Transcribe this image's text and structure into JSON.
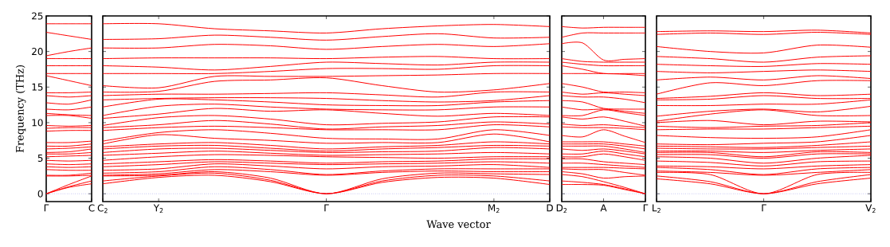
{
  "chart_data": [
    {
      "type": "line",
      "color": "#ff0000",
      "ylabel": "Frequency (THz)",
      "ylim": [
        -1.1,
        25
      ],
      "yticks": [
        0,
        5,
        10,
        15,
        20,
        25
      ],
      "categories": [
        "Γ",
        null,
        "C"
      ],
      "ref_lines": [
        {
          "axis": "y",
          "value": 0,
          "color": "#6666dd",
          "line_style": "dotted"
        }
      ],
      "series": [
        {
          "values": [
            0,
            0.9,
            1.4
          ]
        },
        {
          "values": [
            0,
            1.0,
            1.8
          ]
        },
        {
          "values": [
            0,
            1.3,
            2.5
          ]
        },
        {
          "values": [
            2.5,
            2.5,
            2.6
          ]
        },
        {
          "values": [
            2.6,
            2.6,
            2.9
          ]
        },
        {
          "values": [
            3.4,
            3.3,
            3.3
          ]
        },
        {
          "values": [
            3.8,
            3.7,
            3.8
          ]
        },
        {
          "values": [
            4.2,
            4.1,
            4.2
          ]
        },
        {
          "values": [
            4.7,
            4.6,
            4.7
          ]
        },
        {
          "values": [
            5.2,
            5.3,
            5.4
          ]
        },
        {
          "values": [
            5.6,
            5.6,
            5.8
          ]
        },
        {
          "values": [
            5.8,
            5.9,
            6.3
          ]
        },
        {
          "values": [
            6.3,
            6.4,
            6.6
          ]
        },
        {
          "values": [
            6.7,
            6.7,
            7.0
          ]
        },
        {
          "values": [
            7.2,
            7.2,
            7.4
          ]
        },
        {
          "values": [
            8.8,
            8.9,
            8.9
          ]
        },
        {
          "values": [
            9.2,
            9.3,
            9.3
          ]
        },
        {
          "values": [
            9.6,
            9.5,
            9.6
          ]
        },
        {
          "values": [
            11.0,
            11.0,
            10.6
          ]
        },
        {
          "values": [
            11.3,
            11.1,
            11.0
          ]
        },
        {
          "values": [
            11.9,
            11.8,
            12.2
          ]
        },
        {
          "values": [
            12.8,
            12.6,
            13.2
          ]
        },
        {
          "values": [
            13.8,
            13.6,
            13.8
          ]
        },
        {
          "values": [
            14.2,
            14.2,
            14.3
          ]
        },
        {
          "values": [
            16.6,
            15.9,
            15.2
          ]
        },
        {
          "values": [
            16.9,
            16.9,
            16.9
          ]
        },
        {
          "values": [
            18.0,
            18.0,
            18.0
          ]
        },
        {
          "values": [
            19.0,
            19.0,
            19.0
          ]
        },
        {
          "values": [
            19.4,
            20.0,
            20.5
          ]
        },
        {
          "values": [
            22.7,
            22.2,
            21.7
          ]
        },
        {
          "values": [
            23.9,
            23.9,
            23.9
          ]
        }
      ]
    },
    {
      "type": "line",
      "color": "#ff0000",
      "xlabel": "Wave vector",
      "tick_labels": "x",
      "ylim": [
        -1.1,
        25
      ],
      "yticks": [
        0,
        5,
        10,
        15,
        20,
        25
      ],
      "categories": [
        "C$_{2}$",
        "Y$_{2}$",
        null,
        null,
        "Γ",
        null,
        null,
        "M$_{2}$",
        "D"
      ],
      "ref_lines": [
        {
          "axis": "y",
          "value": 0,
          "color": "#6666dd",
          "line_style": "dotted"
        }
      ],
      "series": [
        {
          "values": [
            1.4,
            2.3,
            2.6,
            1.7,
            0,
            1.6,
            2.3,
            2.2,
            1.3
          ]
        },
        {
          "values": [
            1.8,
            2.5,
            2.9,
            1.9,
            0,
            1.8,
            2.6,
            2.5,
            1.8
          ]
        },
        {
          "values": [
            2.5,
            2.6,
            3.1,
            2.2,
            0,
            2.1,
            2.9,
            2.8,
            2.7
          ]
        },
        {
          "values": [
            2.6,
            2.8,
            3.4,
            3.1,
            2.6,
            3.0,
            3.2,
            3.1,
            3.1
          ]
        },
        {
          "values": [
            2.9,
            3.1,
            3.8,
            3.4,
            2.7,
            3.2,
            3.5,
            3.5,
            3.5
          ]
        },
        {
          "values": [
            3.3,
            3.5,
            4.2,
            3.9,
            3.5,
            3.8,
            3.9,
            4.1,
            3.7
          ]
        },
        {
          "values": [
            3.8,
            4.1,
            4.5,
            4.3,
            4.1,
            4.2,
            4.3,
            4.5,
            4.3
          ]
        },
        {
          "values": [
            4.2,
            4.5,
            4.8,
            4.6,
            4.3,
            4.5,
            4.6,
            4.9,
            4.9
          ]
        },
        {
          "values": [
            4.7,
            5.2,
            5.5,
            5.4,
            5.2,
            5.1,
            5.0,
            5.2,
            5.2
          ]
        },
        {
          "values": [
            5.4,
            5.7,
            6.0,
            5.7,
            5.4,
            5.5,
            5.6,
            5.8,
            5.6
          ]
        },
        {
          "values": [
            5.8,
            6.3,
            6.4,
            6.1,
            5.8,
            5.9,
            6.0,
            6.5,
            6.3
          ]
        },
        {
          "values": [
            6.3,
            6.7,
            6.8,
            6.4,
            6.0,
            6.3,
            6.5,
            6.8,
            6.7
          ]
        },
        {
          "values": [
            6.6,
            7.0,
            7.2,
            6.8,
            6.3,
            6.6,
            6.8,
            7.3,
            7.0
          ]
        },
        {
          "values": [
            7.0,
            8.3,
            7.8,
            7.5,
            7.1,
            7.2,
            7.2,
            8.4,
            7.3
          ]
        },
        {
          "values": [
            7.4,
            8.6,
            9.0,
            8.5,
            7.8,
            7.7,
            7.7,
            9.0,
            8.2
          ]
        },
        {
          "values": [
            8.9,
            9.3,
            9.5,
            9.3,
            9.0,
            9.0,
            9.0,
            9.7,
            9.4
          ]
        },
        {
          "values": [
            9.3,
            9.7,
            10.3,
            9.8,
            9.1,
            9.4,
            9.6,
            10.1,
            9.8
          ]
        },
        {
          "values": [
            9.6,
            10.7,
            11.0,
            10.5,
            9.7,
            9.9,
            10.1,
            10.8,
            10.8
          ]
        },
        {
          "values": [
            10.6,
            11.2,
            12.0,
            11.6,
            11.8,
            11.3,
            10.9,
            11.3,
            11.0
          ]
        },
        {
          "values": [
            11.0,
            12.3,
            12.6,
            12.2,
            11.9,
            11.8,
            11.8,
            12.2,
            12.2
          ]
        },
        {
          "values": [
            12.2,
            13.3,
            13.2,
            12.9,
            12.5,
            12.4,
            12.4,
            12.9,
            13.1
          ]
        },
        {
          "values": [
            13.2,
            13.4,
            13.5,
            13.5,
            13.4,
            13.1,
            12.9,
            13.1,
            13.8
          ]
        },
        {
          "values": [
            13.8,
            14.0,
            14.0,
            14.1,
            14.2,
            13.9,
            13.6,
            14.3,
            14.3
          ]
        },
        {
          "values": [
            14.3,
            14.4,
            15.8,
            16.0,
            16.3,
            15.2,
            14.3,
            14.6,
            15.5
          ]
        },
        {
          "values": [
            15.2,
            14.9,
            16.5,
            16.5,
            16.5,
            16.6,
            16.7,
            16.9,
            16.9
          ]
        },
        {
          "values": [
            16.9,
            16.9,
            16.9,
            17.2,
            17.6,
            17.6,
            17.5,
            18.0,
            18.0
          ]
        },
        {
          "values": [
            18.0,
            17.8,
            17.4,
            17.9,
            18.5,
            18.3,
            18.1,
            18.5,
            18.5
          ]
        },
        {
          "values": [
            19.0,
            19.1,
            19.1,
            19.1,
            19.0,
            19.2,
            19.3,
            19.0,
            19.0
          ]
        },
        {
          "values": [
            20.5,
            20.5,
            21.0,
            20.8,
            20.3,
            20.7,
            21.0,
            20.7,
            21.1
          ]
        },
        {
          "values": [
            21.7,
            21.8,
            22.3,
            22.0,
            21.6,
            22.1,
            22.5,
            21.9,
            22.0
          ]
        },
        {
          "values": [
            23.9,
            23.9,
            23.2,
            22.9,
            22.6,
            23.2,
            23.6,
            23.8,
            23.5
          ]
        }
      ]
    },
    {
      "type": "line",
      "color": "#ff0000",
      "tick_labels": "x",
      "ylim": [
        -1.1,
        25
      ],
      "yticks": [
        0,
        5,
        10,
        15,
        20,
        25
      ],
      "categories": [
        "D$_{2}$",
        null,
        "A",
        null,
        "Γ"
      ],
      "ref_lines": [
        {
          "axis": "y",
          "value": 0,
          "color": "#6666dd",
          "line_style": "dotted"
        }
      ],
      "series": [
        {
          "values": [
            1.3,
            1.3,
            1.2,
            0.6,
            0
          ]
        },
        {
          "values": [
            1.8,
            1.6,
            1.3,
            0.7,
            0
          ]
        },
        {
          "values": [
            2.7,
            2.4,
            1.7,
            0.9,
            0
          ]
        },
        {
          "values": [
            3.1,
            2.8,
            2.2,
            2.4,
            2.5
          ]
        },
        {
          "values": [
            3.5,
            3.4,
            3.4,
            3.0,
            2.6
          ]
        },
        {
          "values": [
            3.7,
            3.7,
            3.7,
            3.6,
            3.5
          ]
        },
        {
          "values": [
            4.3,
            4.3,
            4.1,
            3.9,
            3.7
          ]
        },
        {
          "values": [
            4.9,
            4.9,
            4.5,
            4.3,
            4.1
          ]
        },
        {
          "values": [
            5.2,
            5.2,
            5.6,
            5.2,
            4.7
          ]
        },
        {
          "values": [
            5.6,
            5.6,
            6.0,
            5.6,
            5.2
          ]
        },
        {
          "values": [
            6.3,
            6.1,
            6.3,
            6.0,
            5.6
          ]
        },
        {
          "values": [
            6.7,
            6.7,
            6.7,
            6.3,
            5.8
          ]
        },
        {
          "values": [
            7.0,
            7.0,
            7.0,
            6.7,
            6.3
          ]
        },
        {
          "values": [
            7.3,
            7.3,
            7.3,
            7.0,
            6.7
          ]
        },
        {
          "values": [
            8.2,
            8.0,
            9.0,
            8.1,
            7.2
          ]
        },
        {
          "values": [
            9.4,
            9.3,
            9.3,
            9.2,
            9.0
          ]
        },
        {
          "values": [
            9.8,
            9.6,
            9.7,
            9.5,
            9.3
          ]
        },
        {
          "values": [
            10.8,
            10.5,
            10.8,
            10.2,
            9.5
          ]
        },
        {
          "values": [
            11.0,
            11.0,
            11.8,
            11.4,
            11.0
          ]
        },
        {
          "values": [
            12.2,
            11.8,
            11.9,
            11.6,
            11.3
          ]
        },
        {
          "values": [
            13.1,
            12.9,
            12.0,
            11.9,
            11.9
          ]
        },
        {
          "values": [
            13.8,
            13.6,
            13.6,
            13.3,
            12.8
          ]
        },
        {
          "values": [
            14.3,
            14.0,
            14.2,
            14.0,
            13.8
          ]
        },
        {
          "values": [
            15.5,
            15.0,
            14.3,
            14.3,
            14.2
          ]
        },
        {
          "values": [
            16.9,
            16.9,
            16.9,
            16.8,
            16.6
          ]
        },
        {
          "values": [
            18.0,
            17.5,
            16.9,
            16.9,
            16.9
          ]
        },
        {
          "values": [
            18.5,
            18.2,
            18.0,
            18.0,
            18.0
          ]
        },
        {
          "values": [
            19.0,
            18.6,
            18.5,
            18.5,
            18.5
          ]
        },
        {
          "values": [
            21.1,
            21.2,
            18.8,
            18.9,
            19.0
          ]
        },
        {
          "values": [
            22.0,
            22.6,
            22.6,
            22.6,
            22.6
          ]
        },
        {
          "values": [
            23.5,
            23.3,
            23.4,
            23.4,
            23.4
          ]
        }
      ]
    },
    {
      "type": "line",
      "color": "#ff0000",
      "tick_labels": "x",
      "ylim": [
        -1.1,
        25
      ],
      "yticks": [
        0,
        5,
        10,
        15,
        20,
        25
      ],
      "categories": [
        "L$_{2}$",
        null,
        "Γ",
        null,
        "V$_{2}$"
      ],
      "ref_lines": [
        {
          "axis": "y",
          "value": 0,
          "color": "#6666dd",
          "line_style": "dotted"
        }
      ],
      "series": [
        {
          "values": [
            2.1,
            1.4,
            0,
            1.4,
            2.2
          ]
        },
        {
          "values": [
            2.5,
            1.7,
            0,
            1.7,
            2.7
          ]
        },
        {
          "values": [
            3.0,
            2.7,
            0,
            2.7,
            3.0
          ]
        },
        {
          "values": [
            3.2,
            3.0,
            2.6,
            3.0,
            3.4
          ]
        },
        {
          "values": [
            3.7,
            3.4,
            2.7,
            3.5,
            3.7
          ]
        },
        {
          "values": [
            3.9,
            3.8,
            3.5,
            3.9,
            4.1
          ]
        },
        {
          "values": [
            4.6,
            4.4,
            3.9,
            4.5,
            4.6
          ]
        },
        {
          "values": [
            5.2,
            5.0,
            4.3,
            5.0,
            5.4
          ]
        },
        {
          "values": [
            5.5,
            5.5,
            5.0,
            5.6,
            5.6
          ]
        },
        {
          "values": [
            5.8,
            5.8,
            5.2,
            5.9,
            5.8
          ]
        },
        {
          "values": [
            6.0,
            6.0,
            5.8,
            6.1,
            6.3
          ]
        },
        {
          "values": [
            6.4,
            6.3,
            6.3,
            6.5,
            6.7
          ]
        },
        {
          "values": [
            6.7,
            6.6,
            6.5,
            6.8,
            7.3
          ]
        },
        {
          "values": [
            7.0,
            6.9,
            7.1,
            7.3,
            8.2
          ]
        },
        {
          "values": [
            8.2,
            7.9,
            7.8,
            8.0,
            9.0
          ]
        },
        {
          "values": [
            9.0,
            9.1,
            9.1,
            9.3,
            9.5
          ]
        },
        {
          "values": [
            9.5,
            9.3,
            9.5,
            9.6,
            10.0
          ]
        },
        {
          "values": [
            10.0,
            10.3,
            9.7,
            10.2,
            10.1
          ]
        },
        {
          "values": [
            10.2,
            11.2,
            11.8,
            11.0,
            11.0
          ]
        },
        {
          "values": [
            10.9,
            11.6,
            11.9,
            11.5,
            12.3
          ]
        },
        {
          "values": [
            12.4,
            12.4,
            12.6,
            12.6,
            13.2
          ]
        },
        {
          "values": [
            13.2,
            13.3,
            13.8,
            13.4,
            13.4
          ]
        },
        {
          "values": [
            13.4,
            13.7,
            14.2,
            13.8,
            14.0
          ]
        },
        {
          "values": [
            14.0,
            15.6,
            15.2,
            15.9,
            15.9
          ]
        },
        {
          "values": [
            16.0,
            16.4,
            16.0,
            16.6,
            16.2
          ]
        },
        {
          "values": [
            17.2,
            17.0,
            17.2,
            17.4,
            17.2
          ]
        },
        {
          "values": [
            18.2,
            18.0,
            17.9,
            18.3,
            18.2
          ]
        },
        {
          "values": [
            19.3,
            19.0,
            18.5,
            19.2,
            19.4
          ]
        },
        {
          "values": [
            20.7,
            20.0,
            19.8,
            20.9,
            20.6
          ]
        },
        {
          "values": [
            22.4,
            22.6,
            22.4,
            22.7,
            22.4
          ]
        },
        {
          "values": [
            22.8,
            22.9,
            22.8,
            23.0,
            22.6
          ]
        }
      ]
    }
  ]
}
